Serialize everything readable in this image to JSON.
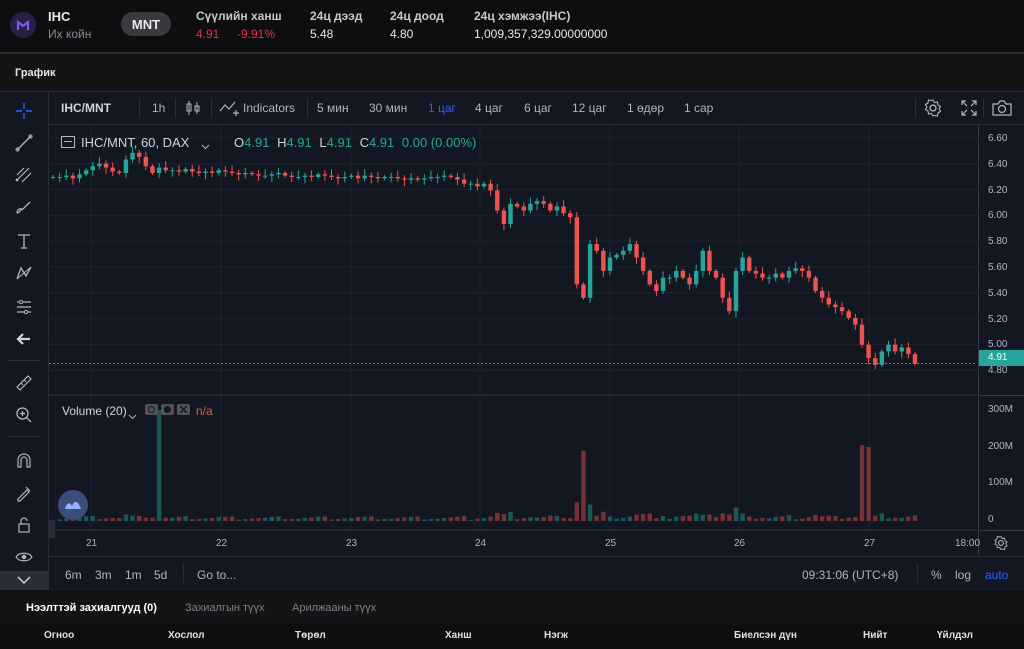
{
  "header": {
    "symbol": "IHC",
    "name": "Их койн",
    "quote_currency": "MNT",
    "last_price_label": "Сүүлийн ханш",
    "last_price": "4.91",
    "change_pct": "-9.91%",
    "high_label": "24ц дээд",
    "high": "5.48",
    "low_label": "24ц доод",
    "low": "4.80",
    "volume_label": "24ц хэмжээ(IHC)",
    "volume": "1,009,357,329.00000000"
  },
  "section_title": "График",
  "toolbar": {
    "pair": "IHC/MNT",
    "interval": "1h",
    "indicators": "Indicators",
    "intervals": [
      "5 мин",
      "30 мин",
      "1 цаг",
      "4 цаг",
      "6 цаг",
      "12 цаг",
      "1 өдөр",
      "1 сар"
    ],
    "active_interval": "1 цаг"
  },
  "legend": {
    "title": "IHC/MNT, 60, DAX",
    "o_label": "O",
    "o": "4.91",
    "h_label": "H",
    "h": "4.91",
    "l_label": "L",
    "l": "4.91",
    "c_label": "C",
    "c": "4.91",
    "change": "0.00 (0.00%)",
    "volume_title": "Volume (20)",
    "volume_value": "n/a"
  },
  "price_axis": [
    "6.60",
    "6.40",
    "6.20",
    "6.00",
    "5.80",
    "5.60",
    "5.40",
    "5.20",
    "5.00",
    "4.80"
  ],
  "price_tag": "4.91",
  "volume_axis": [
    "300M",
    "200M",
    "100M",
    "0"
  ],
  "time_axis": [
    "21",
    "22",
    "23",
    "24",
    "25",
    "26",
    "27",
    "18:00"
  ],
  "bottom_bar": {
    "ranges": [
      "6m",
      "3m",
      "1m",
      "5d"
    ],
    "goto": "Go to...",
    "clock": "09:31:06 (UTC+8)",
    "pct": "%",
    "log": "log",
    "auto": "auto"
  },
  "orders": {
    "tabs": [
      "Нээлттэй захиалгууд (0)",
      "Захиалгын түүх",
      "Арилжааны түүх"
    ],
    "columns": [
      "Огноо",
      "Хослол",
      "Төрөл",
      "Ханш",
      "Нэгж",
      "Биелсэн дүн",
      "Нийт",
      "Үйлдэл"
    ]
  },
  "colors": {
    "up": "#26a69a",
    "down": "#ef5350",
    "active": "#2962ff",
    "background": "#131722"
  },
  "chart_data": {
    "type": "candlestick",
    "title": "IHC/MNT, 60, DAX",
    "x_range": [
      "21",
      "27 18:00"
    ],
    "y_range": [
      4.75,
      6.65
    ],
    "close_series": [
      6.3,
      6.3,
      6.31,
      6.29,
      6.32,
      6.35,
      6.38,
      6.4,
      6.37,
      6.34,
      6.33,
      6.43,
      6.48,
      6.45,
      6.38,
      6.33,
      6.37,
      6.35,
      6.35,
      6.34,
      6.36,
      6.34,
      6.33,
      6.34,
      6.33,
      6.35,
      6.34,
      6.33,
      6.32,
      6.33,
      6.32,
      6.31,
      6.31,
      6.32,
      6.33,
      6.31,
      6.3,
      6.3,
      6.31,
      6.3,
      6.32,
      6.31,
      6.3,
      6.29,
      6.3,
      6.31,
      6.29,
      6.31,
      6.3,
      6.29,
      6.3,
      6.3,
      6.29,
      6.28,
      6.29,
      6.28,
      6.29,
      6.3,
      6.3,
      6.31,
      6.3,
      6.28,
      6.25,
      6.25,
      6.23,
      6.25,
      6.2,
      6.05,
      5.95,
      6.1,
      6.08,
      6.05,
      6.1,
      6.12,
      6.1,
      6.05,
      6.08,
      6.03,
      6.0,
      5.5,
      5.4,
      5.8,
      5.75,
      5.6,
      5.7,
      5.72,
      5.75,
      5.8,
      5.7,
      5.6,
      5.5,
      5.45,
      5.55,
      5.55,
      5.6,
      5.55,
      5.5,
      5.6,
      5.75,
      5.6,
      5.55,
      5.4,
      5.3,
      5.6,
      5.7,
      5.6,
      5.58,
      5.55,
      5.55,
      5.58,
      5.55,
      5.6,
      5.62,
      5.6,
      5.55,
      5.45,
      5.4,
      5.35,
      5.33,
      5.3,
      5.25,
      5.2,
      5.05,
      4.95,
      4.9,
      5.0,
      5.05,
      5.0,
      5.03,
      4.98,
      4.91
    ],
    "volume_range_M": [
      0,
      300
    ]
  }
}
